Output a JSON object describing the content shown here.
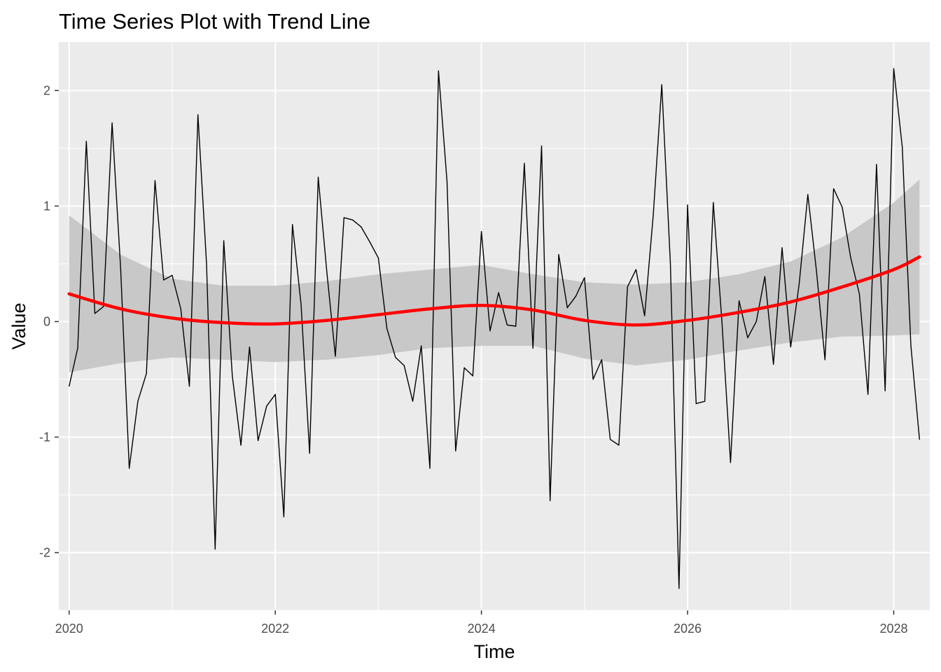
{
  "chart_data": {
    "type": "line",
    "title": "Time Series Plot with Trend Line",
    "xlabel": "Time",
    "ylabel": "Value",
    "x_range": [
      2019.9,
      2028.35
    ],
    "ylim": [
      -2.5,
      2.42
    ],
    "x_ticks": [
      2020,
      2022,
      2024,
      2026,
      2028
    ],
    "x_tick_labels": [
      "2020",
      "2022",
      "2024",
      "2026",
      "2028"
    ],
    "y_ticks": [
      -2,
      -1,
      0,
      1,
      2
    ],
    "y_tick_labels": [
      "-2",
      "-1",
      "0",
      "1",
      "2"
    ],
    "grid": true,
    "legend": "none",
    "panel_background": "#ebebeb",
    "series": [
      {
        "role": "observed",
        "color": "#000000",
        "x": [
          "2020-01",
          "2020-02",
          "2020-03",
          "2020-04",
          "2020-05",
          "2020-06",
          "2020-07",
          "2020-08",
          "2020-09",
          "2020-10",
          "2020-11",
          "2020-12",
          "2021-01",
          "2021-02",
          "2021-03",
          "2021-04",
          "2021-05",
          "2021-06",
          "2021-07",
          "2021-08",
          "2021-09",
          "2021-10",
          "2021-11",
          "2021-12",
          "2022-01",
          "2022-02",
          "2022-03",
          "2022-04",
          "2022-05",
          "2022-06",
          "2022-07",
          "2022-08",
          "2022-09",
          "2022-10",
          "2022-11",
          "2022-12",
          "2023-01",
          "2023-02",
          "2023-03",
          "2023-04",
          "2023-05",
          "2023-06",
          "2023-07",
          "2023-08",
          "2023-09",
          "2023-10",
          "2023-11",
          "2023-12",
          "2024-01",
          "2024-02",
          "2024-03",
          "2024-04",
          "2024-05",
          "2024-06",
          "2024-07",
          "2024-08",
          "2024-09",
          "2024-10",
          "2024-11",
          "2024-12",
          "2025-01",
          "2025-02",
          "2025-03",
          "2025-04",
          "2025-05",
          "2025-06",
          "2025-07",
          "2025-08",
          "2025-09",
          "2025-10",
          "2025-11",
          "2025-12",
          "2026-01",
          "2026-02",
          "2026-03",
          "2026-04",
          "2026-05",
          "2026-06",
          "2026-07",
          "2026-08",
          "2026-09",
          "2026-10",
          "2026-11",
          "2026-12",
          "2027-01",
          "2027-02",
          "2027-03",
          "2027-04",
          "2027-05",
          "2027-06",
          "2027-07",
          "2027-08",
          "2027-09",
          "2027-10",
          "2027-11",
          "2027-12",
          "2028-01",
          "2028-02",
          "2028-03",
          "2028-04"
        ],
        "values": [
          -0.56,
          -0.23,
          1.56,
          0.07,
          0.13,
          1.72,
          0.46,
          -1.27,
          -0.69,
          -0.45,
          1.22,
          0.36,
          0.4,
          0.11,
          -0.56,
          1.79,
          0.5,
          -1.97,
          0.7,
          -0.47,
          -1.07,
          -0.22,
          -1.03,
          -0.73,
          -0.63,
          -1.69,
          0.84,
          0.15,
          -1.14,
          1.25,
          0.43,
          -0.3,
          0.9,
          0.88,
          0.82,
          0.69,
          0.55,
          -0.06,
          -0.31,
          -0.38,
          -0.69,
          -0.21,
          -1.27,
          2.17,
          1.21,
          -1.12,
          -0.4,
          -0.47,
          0.78,
          -0.08,
          0.25,
          -0.03,
          -0.04,
          1.37,
          -0.23,
          1.52,
          -1.55,
          0.58,
          0.12,
          0.22,
          0.38,
          -0.5,
          -0.33,
          -1.02,
          -1.07,
          0.3,
          0.45,
          0.05,
          0.92,
          2.05,
          0.5,
          -2.31,
          1.01,
          -0.71,
          -0.69,
          1.03,
          0.0,
          -1.22,
          0.18,
          -0.14,
          0.0,
          0.39,
          -0.37,
          0.64,
          -0.22,
          0.33,
          1.1,
          0.44,
          -0.33,
          1.15,
          0.99,
          0.55,
          0.24,
          -0.63,
          1.36,
          -0.6,
          2.19,
          1.51,
          -0.21,
          -1.02
        ]
      },
      {
        "role": "trend",
        "color": "#ff0000",
        "x": [
          "2020-01",
          "2020-07",
          "2021-01",
          "2021-07",
          "2022-01",
          "2022-07",
          "2023-01",
          "2023-07",
          "2024-01",
          "2024-07",
          "2025-01",
          "2025-07",
          "2026-01",
          "2026-07",
          "2027-01",
          "2027-07",
          "2028-01",
          "2028-04"
        ],
        "values": [
          0.24,
          0.11,
          0.03,
          -0.01,
          -0.02,
          0.01,
          0.06,
          0.11,
          0.14,
          0.1,
          0.01,
          -0.03,
          0.01,
          0.08,
          0.17,
          0.3,
          0.45,
          0.56
        ]
      },
      {
        "role": "confidence-band",
        "color": "#c8c8c8",
        "x": [
          "2020-01",
          "2020-07",
          "2021-01",
          "2021-07",
          "2022-01",
          "2022-07",
          "2023-01",
          "2023-07",
          "2024-01",
          "2024-07",
          "2025-01",
          "2025-07",
          "2026-01",
          "2026-07",
          "2027-01",
          "2027-07",
          "2028-01",
          "2028-04"
        ],
        "upper": [
          0.92,
          0.58,
          0.37,
          0.31,
          0.31,
          0.35,
          0.41,
          0.45,
          0.49,
          0.41,
          0.34,
          0.32,
          0.34,
          0.41,
          0.52,
          0.73,
          1.03,
          1.23
        ],
        "lower": [
          -0.44,
          -0.36,
          -0.31,
          -0.33,
          -0.35,
          -0.33,
          -0.29,
          -0.23,
          -0.21,
          -0.21,
          -0.32,
          -0.38,
          -0.33,
          -0.25,
          -0.18,
          -0.13,
          -0.12,
          -0.11
        ]
      }
    ]
  }
}
